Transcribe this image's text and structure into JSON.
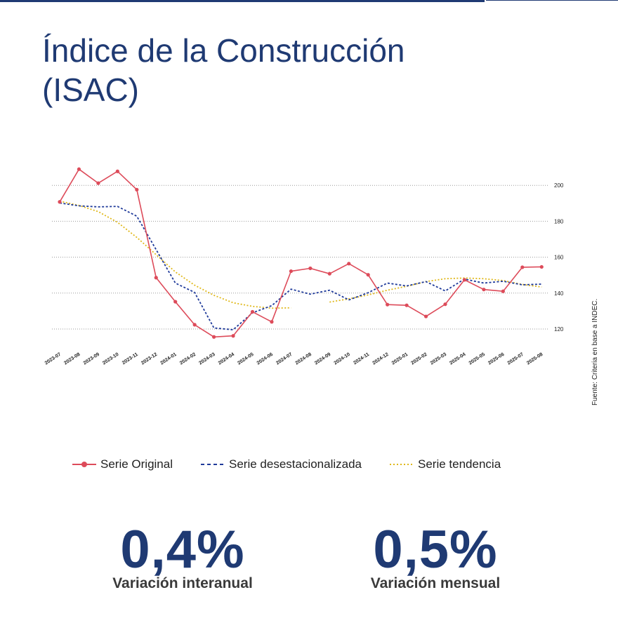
{
  "header": {
    "title_line1": "Índice de la Construcción",
    "title_line2": "(ISAC)"
  },
  "chart_data": {
    "type": "line",
    "title": "Índice de la Construcción (ISAC)",
    "xlabel": "",
    "ylabel": "",
    "ylim": [
      110,
      212
    ],
    "yticks": [
      120,
      140,
      160,
      180,
      200
    ],
    "grid": true,
    "y_axis_side": "right",
    "categories": [
      "2023-07",
      "2023-08",
      "2023-09",
      "2023-10",
      "2023-11",
      "2023-12",
      "2024-01",
      "2024-02",
      "2024-03",
      "2024-04",
      "2024-05",
      "2024-06",
      "2024-07",
      "2024-08",
      "2024-09",
      "2024-10",
      "2024-11",
      "2024-12",
      "2025-01",
      "2025-02",
      "2025-03",
      "2025-04",
      "2025-05",
      "2025-06",
      "2025-07",
      "2025-08"
    ],
    "series": [
      {
        "name": "Serie Original",
        "style": "solid-marker",
        "color": "#dd4b5a",
        "values": [
          190.8,
          209.0,
          201.2,
          207.8,
          197.6,
          148.6,
          135.2,
          122.4,
          115.6,
          116.2,
          129.6,
          124.0,
          152.2,
          153.8,
          150.8,
          156.4,
          150.2,
          133.6,
          133.2,
          127.0,
          133.8,
          147.4,
          142.0,
          141.0,
          154.4,
          154.6
        ]
      },
      {
        "name": "Serie desestacionalizada",
        "style": "dashed",
        "color": "#1f3a9a",
        "values": [
          190.2,
          188.6,
          188.0,
          188.3,
          182.8,
          164.2,
          145.6,
          140.4,
          120.6,
          119.6,
          129.0,
          133.0,
          142.2,
          139.4,
          141.6,
          136.2,
          140.2,
          145.6,
          144.0,
          146.4,
          141.2,
          147.8,
          145.6,
          146.6,
          144.6,
          145.0
        ]
      },
      {
        "name": "Serie tendencia",
        "style": "dotted",
        "color": "#e0b81a",
        "values": [
          191.2,
          188.8,
          185.4,
          179.4,
          171.0,
          161.4,
          151.8,
          144.4,
          138.8,
          134.6,
          132.6,
          131.6,
          131.8,
          null,
          135.0,
          136.8,
          139.0,
          141.6,
          143.8,
          146.4,
          148.0,
          148.4,
          148.0,
          147.0,
          144.8,
          143.4
        ]
      }
    ],
    "legend_position": "bottom"
  },
  "source_note": "Fuente: Criteria en base a INDEC.",
  "kpis": [
    {
      "value": "0,4%",
      "label": "Variación interanual"
    },
    {
      "value": "0,5%",
      "label": "Variación mensual"
    }
  ]
}
